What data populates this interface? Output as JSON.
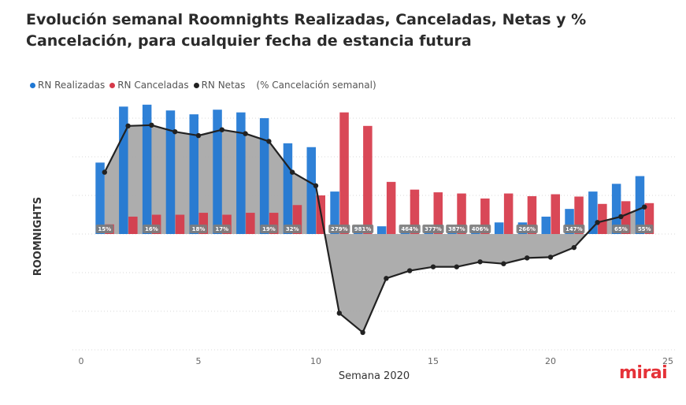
{
  "chart_data": {
    "type": "bar",
    "title": "Evolución semanal Roomnights Realizadas, Canceladas, Netas y % Cancelación, para cualquier fecha de estancia futura",
    "xlabel": "Semana 2020",
    "ylabel": "ROOMNIGHTS",
    "x": [
      1,
      2,
      3,
      4,
      5,
      6,
      7,
      8,
      9,
      10,
      11,
      12,
      13,
      14,
      15,
      16,
      17,
      18,
      19,
      20,
      21,
      22,
      23,
      24
    ],
    "xlim": [
      0,
      25
    ],
    "xticks": [
      "0",
      "5",
      "10",
      "15",
      "20",
      "25"
    ],
    "ylim": [
      -3.1,
      3.5
    ],
    "grid": true,
    "legend_position": "top-left",
    "series": [
      {
        "name": "RN Realizadas",
        "kind": "bar",
        "color": "#1f77d4",
        "values": [
          1.85,
          3.3,
          3.35,
          3.2,
          3.1,
          3.22,
          3.15,
          3.0,
          2.35,
          2.25,
          1.1,
          0.2,
          0.2,
          0.15,
          0.15,
          0.15,
          0.15,
          0.3,
          0.3,
          0.45,
          0.65,
          1.1,
          1.3,
          1.5
        ]
      },
      {
        "name": "RN Canceladas",
        "kind": "bar",
        "color": "#d63a4a",
        "values": [
          0.25,
          0.45,
          0.5,
          0.5,
          0.55,
          0.5,
          0.55,
          0.55,
          0.75,
          1.0,
          3.15,
          2.8,
          1.35,
          1.15,
          1.08,
          1.05,
          0.92,
          1.05,
          0.98,
          1.03,
          0.97,
          0.78,
          0.85,
          0.8
        ]
      },
      {
        "name": "RN Netas",
        "kind": "line",
        "color": "#222222",
        "values": [
          1.6,
          2.8,
          2.82,
          2.65,
          2.55,
          2.7,
          2.6,
          2.4,
          1.6,
          1.25,
          -2.05,
          -2.55,
          -1.15,
          -0.95,
          -0.85,
          -0.85,
          -0.72,
          -0.77,
          -0.62,
          -0.6,
          -0.35,
          0.3,
          0.45,
          0.7
        ]
      }
    ],
    "pct_label_title": "(% Cancelación semanal)",
    "pct_labels": [
      {
        "x": 1,
        "label": "15%"
      },
      {
        "x": 3,
        "label": "16%"
      },
      {
        "x": 5,
        "label": "18%"
      },
      {
        "x": 6,
        "label": "17%"
      },
      {
        "x": 8,
        "label": "19%"
      },
      {
        "x": 9,
        "label": "32%"
      },
      {
        "x": 11,
        "label": "279%"
      },
      {
        "x": 12,
        "label": "981%"
      },
      {
        "x": 14,
        "label": "464%"
      },
      {
        "x": 15,
        "label": "377%"
      },
      {
        "x": 16,
        "label": "387%"
      },
      {
        "x": 17,
        "label": "406%"
      },
      {
        "x": 19,
        "label": "266%"
      },
      {
        "x": 21,
        "label": "147%"
      },
      {
        "x": 23,
        "label": "65%"
      },
      {
        "x": 24,
        "label": "55%"
      }
    ]
  },
  "logo": "mirai",
  "colors": {
    "realizadas": "#1f77d4",
    "canceladas": "#d63a4a",
    "netas": "#222222",
    "area": "#a9a9a9",
    "label_bg": "#8a8a8a"
  }
}
